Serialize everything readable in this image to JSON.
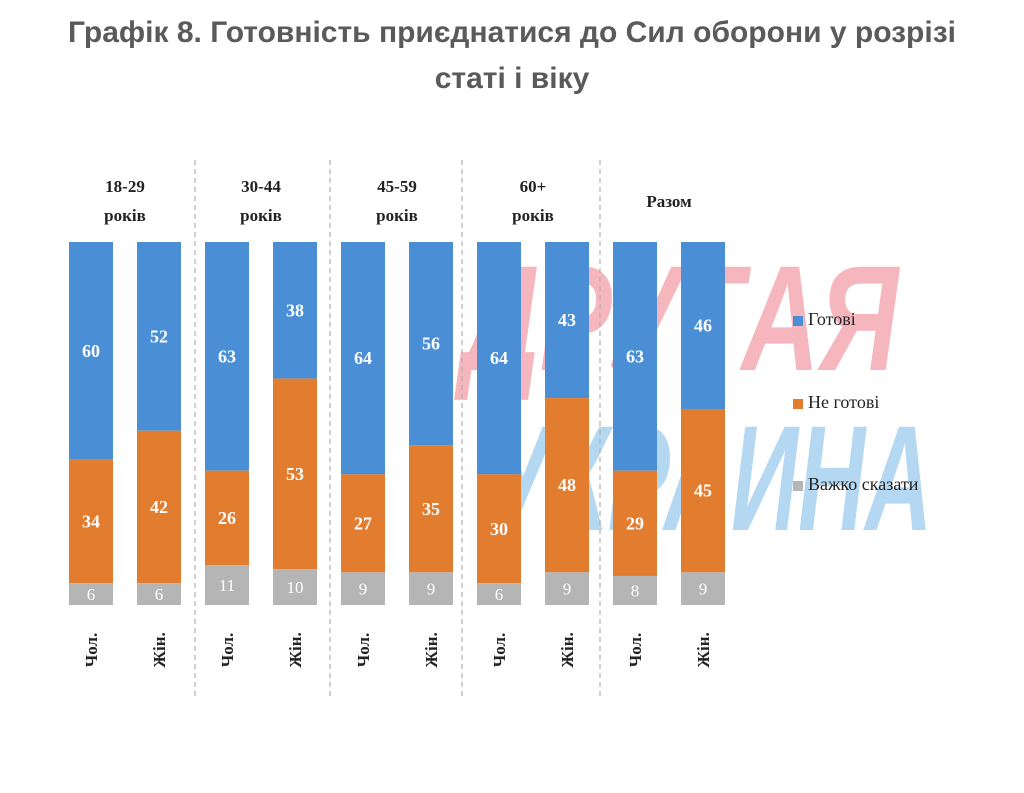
{
  "title": "Графік 8. Готовність приєднатися до Сил оборони у розрізі статі і віку",
  "watermark": {
    "line1": "ДРУГАЯ",
    "line2": "УКРАИНА",
    "line1_color": "#f2a0a8",
    "line2_color": "#9ccbee"
  },
  "colors": {
    "ready": "#4a8fd6",
    "not_ready": "#e27c2f",
    "hard_to_say": "#b5b5b5",
    "divider": "#b0b0b0"
  },
  "chart_data": {
    "type": "bar",
    "stacked": true,
    "orientation": "vertical",
    "unit": "%",
    "groups": [
      "18-29 років",
      "30-44 років",
      "45-59 років",
      "60+ років",
      "Разом"
    ],
    "categories": [
      "Чол.",
      "Жін.",
      "Чол.",
      "Жін.",
      "Чол.",
      "Жін.",
      "Чол.",
      "Жін.",
      "Чол.",
      "Жін."
    ],
    "series": [
      {
        "name": "Готові",
        "values": [
          60,
          52,
          63,
          38,
          64,
          56,
          64,
          43,
          63,
          46
        ]
      },
      {
        "name": "Не готові",
        "values": [
          34,
          42,
          26,
          53,
          27,
          35,
          30,
          48,
          29,
          45
        ]
      },
      {
        "name": "Важко сказати",
        "values": [
          6,
          6,
          11,
          10,
          9,
          9,
          6,
          9,
          8,
          9
        ]
      }
    ],
    "legend_position": "right",
    "ylim": [
      0,
      100
    ],
    "grid": false
  }
}
